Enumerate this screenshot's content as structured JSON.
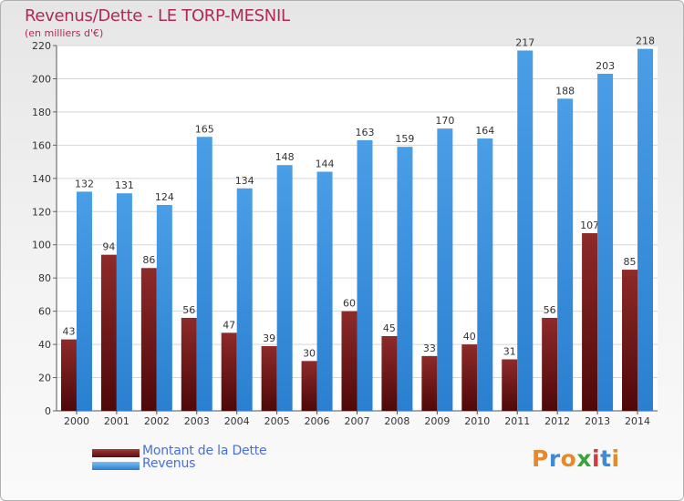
{
  "title": "Revenus/Dette - LE TORP-MESNIL",
  "subtitle": "(en milliers d'€)",
  "colors": {
    "dette": "#7a1a1a",
    "revenus": "#3a8fdc",
    "title": "#b0285a",
    "legend_text": "#4a6fd6"
  },
  "legend": [
    {
      "label": "Montant de la Dette",
      "color": "#6b1414"
    },
    {
      "label": "Revenus",
      "color": "#3a90dd"
    }
  ],
  "logo": {
    "text": "Proxiti"
  },
  "chart_data": {
    "type": "bar",
    "categories": [
      "2000",
      "2001",
      "2002",
      "2003",
      "2004",
      "2005",
      "2006",
      "2007",
      "2008",
      "2009",
      "2010",
      "2011",
      "2012",
      "2013",
      "2014"
    ],
    "series": [
      {
        "name": "Montant de la Dette",
        "values": [
          43,
          94,
          86,
          56,
          47,
          39,
          30,
          60,
          45,
          33,
          40,
          31,
          56,
          107,
          85
        ]
      },
      {
        "name": "Revenus",
        "values": [
          132,
          131,
          124,
          165,
          134,
          148,
          144,
          163,
          159,
          170,
          164,
          217,
          188,
          203,
          218
        ]
      }
    ],
    "ylim": [
      0,
      220
    ],
    "yticks": [
      0,
      20,
      40,
      60,
      80,
      100,
      120,
      140,
      160,
      180,
      200,
      220
    ],
    "grid": true,
    "legend_position": "bottom-left",
    "xlabel": "",
    "ylabel": ""
  }
}
